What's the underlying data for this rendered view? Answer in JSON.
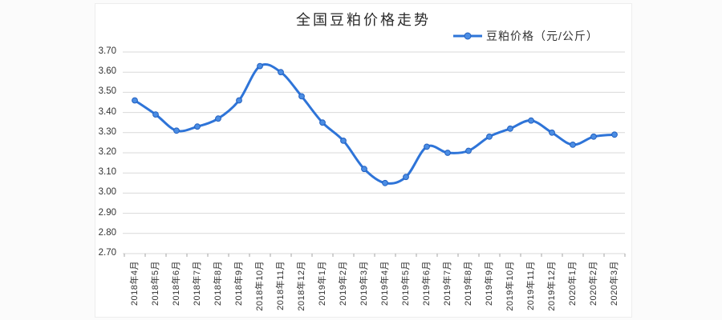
{
  "page": {
    "background": "#fbfbfb",
    "panel_background": "#ffffff"
  },
  "chart_data": {
    "type": "line",
    "title": "全国豆粕价格走势",
    "legend": {
      "label": "豆粕价格（元/公斤）",
      "position": "top-right"
    },
    "categories": [
      "2018年4月",
      "2018年5月",
      "2018年6月",
      "2018年7月",
      "2018年8月",
      "2018年9月",
      "2018年10月",
      "2018年11月",
      "2018年12月",
      "2019年1月",
      "2019年2月",
      "2019年3月",
      "2019年4月",
      "2019年5月",
      "2019年6月",
      "2019年7月",
      "2019年8月",
      "2019年9月",
      "2019年10月",
      "2019年11月",
      "2019年12月",
      "2020年1月",
      "2020年2月",
      "2020年3月"
    ],
    "series": [
      {
        "name": "豆粕价格（元/公斤）",
        "values": [
          3.46,
          3.39,
          3.31,
          3.33,
          3.37,
          3.46,
          3.63,
          3.6,
          3.48,
          3.35,
          3.26,
          3.12,
          3.05,
          3.08,
          3.23,
          3.2,
          3.21,
          3.28,
          3.32,
          3.36,
          3.3,
          3.24,
          3.28,
          3.29
        ]
      }
    ],
    "xlabel": "",
    "ylabel": "",
    "ylim": [
      2.7,
      3.7
    ],
    "ytick_step": 0.1,
    "yticks": [
      "3.70",
      "3.60",
      "3.50",
      "3.40",
      "3.30",
      "3.20",
      "3.10",
      "3.00",
      "2.90",
      "2.80",
      "2.70"
    ],
    "grid": "horizontal",
    "line_smooth": true,
    "colors": {
      "line": "#2e74d8",
      "marker_fill": "#4b8de4",
      "marker_stroke": "#2361c0",
      "grid": "#d9d9d9",
      "tick": "#a6a6a6",
      "text": "#333333"
    }
  }
}
